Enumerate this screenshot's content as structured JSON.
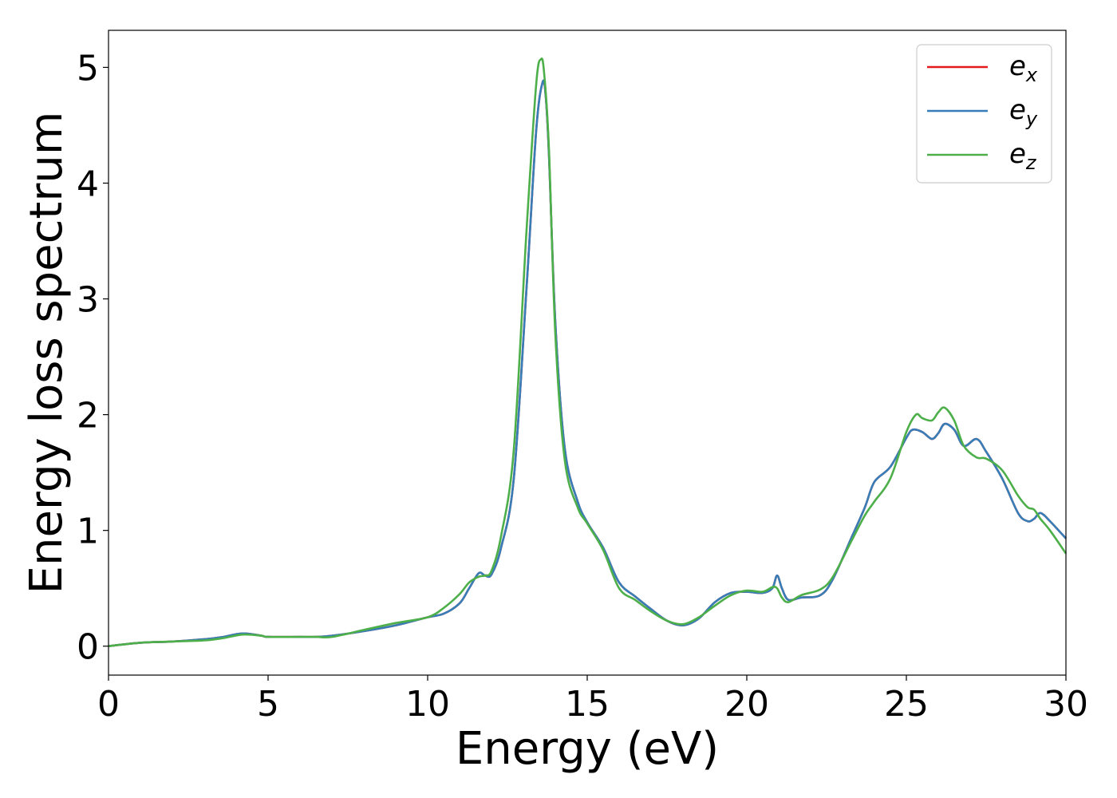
{
  "chart_data": {
    "type": "line",
    "xlabel": "Energy (eV)",
    "ylabel": "Energy loss spectrum",
    "xlim": [
      0,
      30
    ],
    "ylim": [
      -0.25,
      5.32
    ],
    "xticks": [
      0,
      5,
      10,
      15,
      20,
      25,
      30
    ],
    "yticks": [
      0,
      1,
      2,
      3,
      4,
      5
    ],
    "grid": false,
    "legend_position": "top-right",
    "series": [
      {
        "name": "e_x",
        "legend_base": "e",
        "legend_sub": "x",
        "color": "#e41a1c",
        "x": [
          0,
          1,
          2,
          3,
          3.6,
          4.2,
          4.8,
          5,
          6,
          6.5,
          7,
          8,
          9,
          10,
          10.5,
          11,
          11.3,
          11.6,
          11.8,
          12,
          12.3,
          12.7,
          13.1,
          13.4,
          13.6,
          13.7,
          13.8,
          14,
          14.3,
          14.7,
          15,
          15.5,
          16,
          16.5,
          17,
          17.5,
          18,
          18.5,
          19,
          19.5,
          20,
          20.5,
          20.8,
          20.95,
          21.1,
          21.3,
          21.7,
          22.3,
          22.7,
          23.3,
          23.7,
          24,
          24.5,
          25,
          25.2,
          25.5,
          25.8,
          26,
          26.2,
          26.5,
          26.8,
          27.2,
          27.5,
          28,
          28.5,
          28.8,
          29,
          29.2,
          29.5,
          30
        ],
        "y": [
          0,
          0.03,
          0.04,
          0.06,
          0.08,
          0.11,
          0.09,
          0.08,
          0.08,
          0.08,
          0.09,
          0.13,
          0.18,
          0.25,
          0.28,
          0.37,
          0.5,
          0.63,
          0.61,
          0.62,
          0.85,
          1.45,
          3.1,
          4.45,
          4.87,
          4.75,
          4.25,
          2.8,
          1.7,
          1.25,
          1.07,
          0.85,
          0.55,
          0.43,
          0.32,
          0.22,
          0.18,
          0.24,
          0.38,
          0.46,
          0.47,
          0.46,
          0.5,
          0.61,
          0.5,
          0.4,
          0.42,
          0.44,
          0.58,
          0.95,
          1.2,
          1.42,
          1.55,
          1.8,
          1.87,
          1.85,
          1.79,
          1.84,
          1.92,
          1.87,
          1.73,
          1.79,
          1.68,
          1.45,
          1.15,
          1.08,
          1.1,
          1.15,
          1.08,
          0.93
        ]
      },
      {
        "name": "e_y",
        "legend_base": "e",
        "legend_sub": "y",
        "color": "#377eb8",
        "x": [
          0,
          1,
          2,
          3,
          3.6,
          4.2,
          4.8,
          5,
          6,
          6.5,
          7,
          8,
          9,
          10,
          10.5,
          11,
          11.3,
          11.6,
          11.8,
          12,
          12.3,
          12.7,
          13.1,
          13.4,
          13.6,
          13.7,
          13.8,
          14,
          14.3,
          14.7,
          15,
          15.5,
          16,
          16.5,
          17,
          17.5,
          18,
          18.5,
          19,
          19.5,
          20,
          20.5,
          20.8,
          20.95,
          21.1,
          21.3,
          21.7,
          22.3,
          22.7,
          23.3,
          23.7,
          24,
          24.5,
          25,
          25.2,
          25.5,
          25.8,
          26,
          26.2,
          26.5,
          26.8,
          27.2,
          27.5,
          28,
          28.5,
          28.8,
          29,
          29.2,
          29.5,
          30
        ],
        "y": [
          0,
          0.03,
          0.04,
          0.06,
          0.08,
          0.11,
          0.09,
          0.08,
          0.08,
          0.08,
          0.09,
          0.13,
          0.18,
          0.25,
          0.28,
          0.37,
          0.5,
          0.63,
          0.61,
          0.62,
          0.85,
          1.45,
          3.1,
          4.45,
          4.87,
          4.75,
          4.25,
          2.8,
          1.7,
          1.25,
          1.07,
          0.85,
          0.55,
          0.43,
          0.32,
          0.22,
          0.18,
          0.24,
          0.38,
          0.46,
          0.47,
          0.46,
          0.5,
          0.61,
          0.5,
          0.4,
          0.42,
          0.44,
          0.58,
          0.95,
          1.2,
          1.42,
          1.55,
          1.8,
          1.87,
          1.85,
          1.79,
          1.84,
          1.92,
          1.87,
          1.73,
          1.79,
          1.68,
          1.45,
          1.15,
          1.08,
          1.1,
          1.15,
          1.08,
          0.93
        ]
      },
      {
        "name": "e_z",
        "legend_base": "e",
        "legend_sub": "z",
        "color": "#4daf4a",
        "x": [
          0,
          1,
          2,
          3,
          3.6,
          4.2,
          4.8,
          5,
          6,
          6.5,
          7,
          8,
          9,
          10,
          10.5,
          11,
          11.3,
          11.6,
          11.8,
          12,
          12.3,
          12.7,
          13.1,
          13.4,
          13.55,
          13.65,
          13.8,
          14,
          14.3,
          14.7,
          15,
          15.5,
          16,
          16.5,
          17,
          17.5,
          18,
          18.5,
          19,
          19.5,
          20,
          20.5,
          20.8,
          20.95,
          21.1,
          21.3,
          21.7,
          22.3,
          22.7,
          23.3,
          23.7,
          24,
          24.5,
          25,
          25.3,
          25.5,
          25.8,
          26,
          26.2,
          26.5,
          26.8,
          27.2,
          27.5,
          28,
          28.5,
          28.8,
          29,
          29.2,
          29.5,
          30
        ],
        "y": [
          0,
          0.03,
          0.04,
          0.05,
          0.07,
          0.1,
          0.09,
          0.08,
          0.08,
          0.08,
          0.08,
          0.14,
          0.2,
          0.25,
          0.33,
          0.45,
          0.55,
          0.6,
          0.61,
          0.65,
          0.95,
          1.7,
          3.6,
          4.85,
          5.07,
          4.95,
          4.3,
          2.7,
          1.6,
          1.2,
          1.06,
          0.83,
          0.5,
          0.4,
          0.3,
          0.22,
          0.19,
          0.25,
          0.35,
          0.44,
          0.48,
          0.47,
          0.51,
          0.5,
          0.42,
          0.38,
          0.44,
          0.49,
          0.6,
          0.92,
          1.13,
          1.25,
          1.45,
          1.85,
          2.0,
          1.97,
          1.95,
          2.02,
          2.06,
          1.95,
          1.73,
          1.63,
          1.62,
          1.52,
          1.3,
          1.2,
          1.18,
          1.1,
          1.0,
          0.8
        ]
      }
    ]
  }
}
